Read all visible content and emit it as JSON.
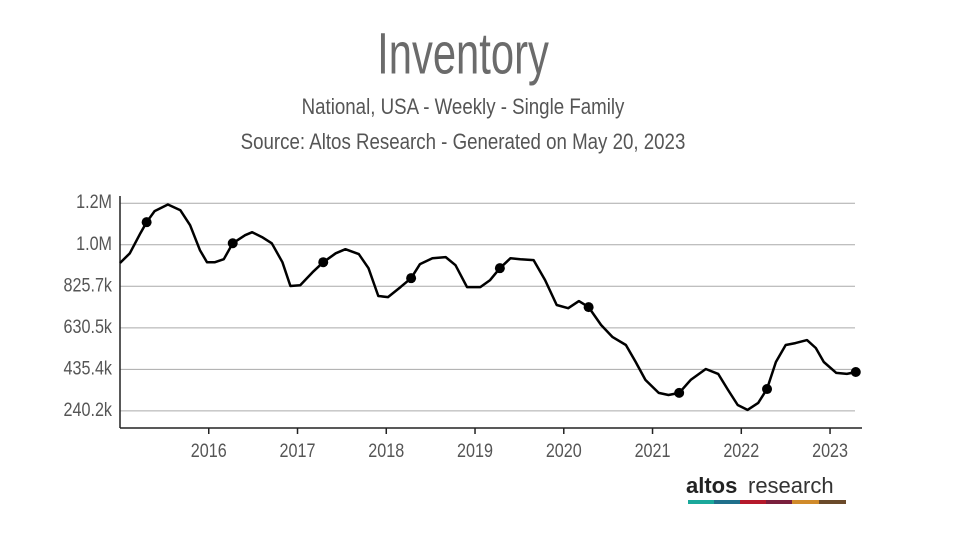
{
  "chart_data": {
    "type": "line",
    "title": "Inventory",
    "subtitle": "National, USA - Weekly - Single Family",
    "source": "Source: Altos Research - Generated on May 20, 2023",
    "color": "#000000",
    "grid": true,
    "xlim": [
      2015.0,
      2023.36
    ],
    "xticks": [
      2016,
      2017,
      2018,
      2019,
      2020,
      2021,
      2022,
      2023
    ],
    "ylim": [
      160000,
      1250000
    ],
    "yticks": [
      {
        "value": 240200,
        "label": "240.2k"
      },
      {
        "value": 435400,
        "label": "435.4k"
      },
      {
        "value": 630500,
        "label": "630.5k"
      },
      {
        "value": 825700,
        "label": "825.7k"
      },
      {
        "value": 1020900,
        "label": "1.0M"
      },
      {
        "value": 1216100,
        "label": "1.2M"
      }
    ],
    "x": [
      2015.0,
      2015.11,
      2015.23,
      2015.3,
      2015.39,
      2015.54,
      2015.68,
      2015.79,
      2015.9,
      2015.98,
      2016.07,
      2016.17,
      2016.27,
      2016.41,
      2016.49,
      2016.6,
      2016.71,
      2016.83,
      2016.92,
      2017.03,
      2017.17,
      2017.29,
      2017.43,
      2017.54,
      2017.69,
      2017.8,
      2017.91,
      2018.02,
      2018.16,
      2018.28,
      2018.38,
      2018.52,
      2018.67,
      2018.78,
      2018.91,
      2019.06,
      2019.17,
      2019.28,
      2019.4,
      2019.51,
      2019.66,
      2019.79,
      2019.92,
      2020.05,
      2020.17,
      2020.28,
      2020.42,
      2020.55,
      2020.7,
      2020.81,
      2020.92,
      2021.07,
      2021.18,
      2021.3,
      2021.43,
      2021.6,
      2021.74,
      2021.85,
      2021.96,
      2022.07,
      2022.19,
      2022.29,
      2022.39,
      2022.5,
      2022.61,
      2022.74,
      2022.84,
      2022.93,
      2023.07,
      2023.19,
      2023.29
    ],
    "values": [
      935000,
      981000,
      1075000,
      1127000,
      1179000,
      1210000,
      1183000,
      1113000,
      996000,
      939000,
      939000,
      953000,
      1028000,
      1066000,
      1080000,
      1057000,
      1028000,
      939000,
      827000,
      831000,
      892000,
      939000,
      981000,
      1000000,
      977000,
      911000,
      780000,
      775000,
      822000,
      864000,
      930000,
      958000,
      963000,
      925000,
      822000,
      822000,
      855000,
      911000,
      958000,
      953000,
      949000,
      855000,
      738000,
      723000,
      756000,
      728000,
      644000,
      587000,
      550000,
      470000,
      386000,
      325000,
      315000,
      325000,
      386000,
      437000,
      414000,
      339000,
      268000,
      245000,
      278000,
      343000,
      470000,
      550000,
      559000,
      573000,
      536000,
      470000,
      419000,
      414000,
      423000
    ],
    "markers": {
      "x": [
        2015.3,
        2016.27,
        2017.29,
        2018.28,
        2019.28,
        2020.28,
        2021.3,
        2022.29,
        2023.29
      ],
      "values": [
        1127000,
        1028000,
        939000,
        864000,
        911000,
        728000,
        325000,
        343000,
        423000
      ]
    }
  },
  "logo": {
    "brand": "altos",
    "word": "research"
  }
}
